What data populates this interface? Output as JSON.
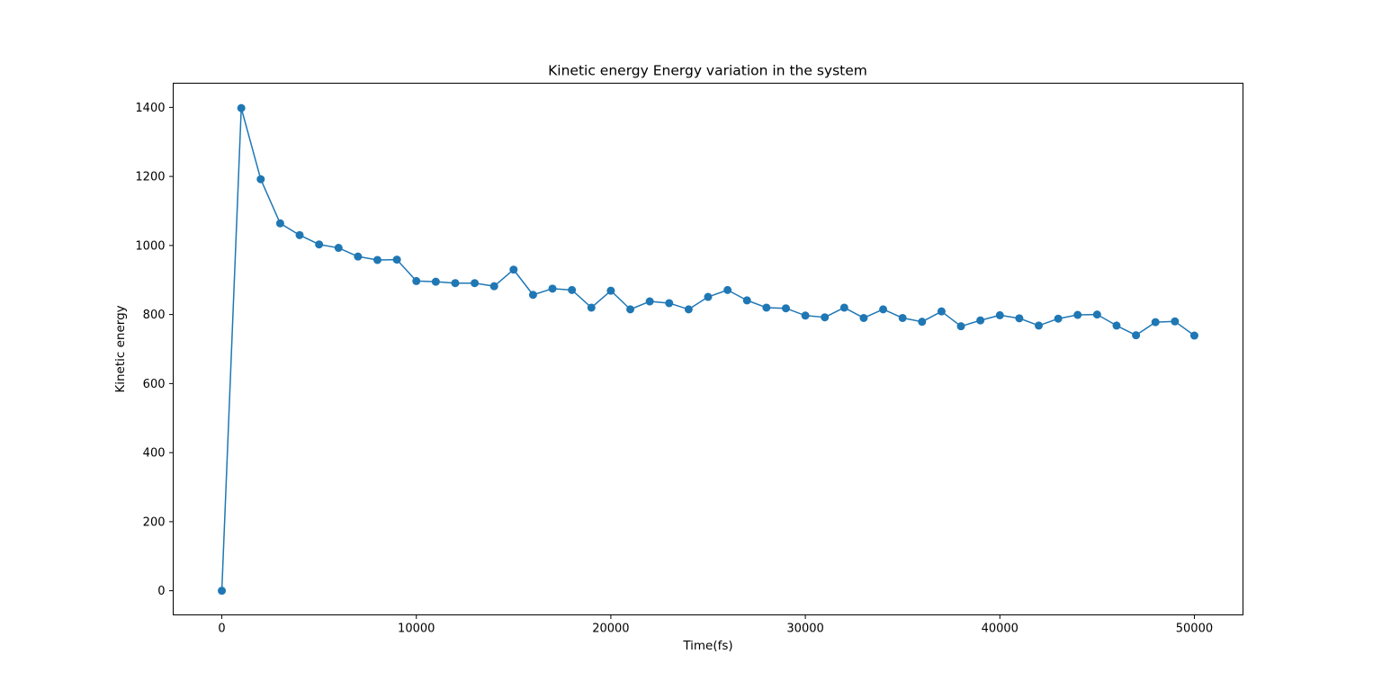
{
  "chart_data": {
    "type": "line",
    "title": "Kinetic energy Energy variation in the system",
    "xlabel": "Time(fs)",
    "ylabel": "Kinetic energy",
    "xlim": [
      -2500,
      52500
    ],
    "ylim": [
      -70,
      1470
    ],
    "xticks": [
      0,
      10000,
      20000,
      30000,
      40000,
      50000
    ],
    "yticks": [
      0,
      200,
      400,
      600,
      800,
      1000,
      1200,
      1400
    ],
    "grid": false,
    "marker": "circle",
    "series_color": "#1f77b4",
    "x": [
      0,
      1000,
      2000,
      3000,
      4000,
      5000,
      6000,
      7000,
      8000,
      9000,
      10000,
      11000,
      12000,
      13000,
      14000,
      15000,
      16000,
      17000,
      18000,
      19000,
      20000,
      21000,
      22000,
      23000,
      24000,
      25000,
      26000,
      27000,
      28000,
      29000,
      30000,
      31000,
      32000,
      33000,
      34000,
      35000,
      36000,
      37000,
      38000,
      39000,
      40000,
      41000,
      42000,
      43000,
      44000,
      45000,
      46000,
      47000,
      48000,
      49000,
      50000
    ],
    "series": [
      {
        "values": [
          0,
          1398,
          1192,
          1064,
          1030,
          1003,
          993,
          968,
          958,
          959,
          897,
          895,
          891,
          891,
          882,
          930,
          857,
          875,
          871,
          820,
          869,
          815,
          838,
          833,
          815,
          851,
          871,
          841,
          820,
          818,
          797,
          792,
          820,
          790,
          815,
          790,
          779,
          809,
          766,
          783,
          798,
          789,
          768,
          788,
          799,
          800,
          768,
          740,
          778,
          780,
          739
        ]
      }
    ]
  }
}
